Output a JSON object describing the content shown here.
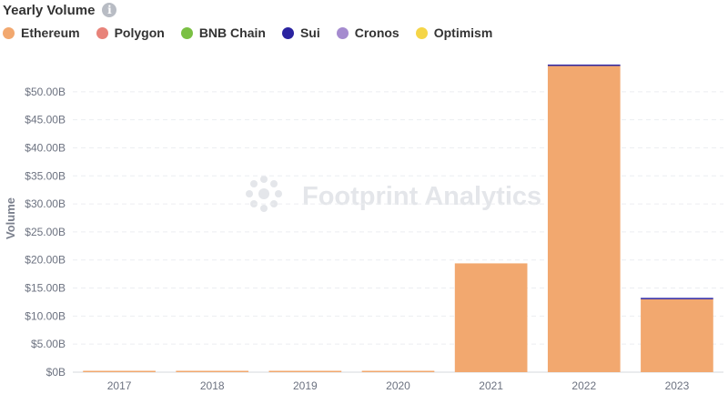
{
  "header": {
    "title": "Yearly Volume",
    "info_icon": "info-icon"
  },
  "colors": {
    "Ethereum": "#f2a86f",
    "Polygon": "#e8837a",
    "BNB Chain": "#7ac043",
    "Sui": "#2a23a0",
    "Cronos": "#a58bcf",
    "Optimism": "#f5d547"
  },
  "watermark": "Footprint Analytics",
  "chart_data": {
    "type": "bar",
    "stacked": true,
    "ylabel": "Volume",
    "xlabel": "",
    "categories": [
      "2017",
      "2018",
      "2019",
      "2020",
      "2021",
      "2022",
      "2023"
    ],
    "ylim": [
      0,
      55
    ],
    "yticks": [
      "$0B",
      "$5.00B",
      "$10.00B",
      "$15.00B",
      "$20.00B",
      "$25.00B",
      "$30.00B",
      "$35.00B",
      "$40.00B",
      "$45.00B",
      "$50.00B"
    ],
    "ytick_values": [
      0,
      5,
      10,
      15,
      20,
      25,
      30,
      35,
      40,
      45,
      50
    ],
    "grid": true,
    "legend_position": "top-left",
    "series": [
      {
        "name": "Ethereum",
        "values": [
          0.05,
          0.05,
          0.05,
          0.05,
          19.4,
          54.6,
          13.0
        ]
      },
      {
        "name": "Polygon",
        "values": [
          0,
          0,
          0,
          0,
          0,
          0,
          0
        ]
      },
      {
        "name": "BNB Chain",
        "values": [
          0,
          0,
          0,
          0,
          0,
          0,
          0
        ]
      },
      {
        "name": "Sui",
        "values": [
          0,
          0,
          0,
          0,
          0,
          0.05,
          0.2
        ]
      },
      {
        "name": "Cronos",
        "values": [
          0,
          0,
          0,
          0,
          0,
          0,
          0
        ]
      },
      {
        "name": "Optimism",
        "values": [
          0,
          0,
          0,
          0,
          0,
          0,
          0
        ]
      }
    ]
  }
}
